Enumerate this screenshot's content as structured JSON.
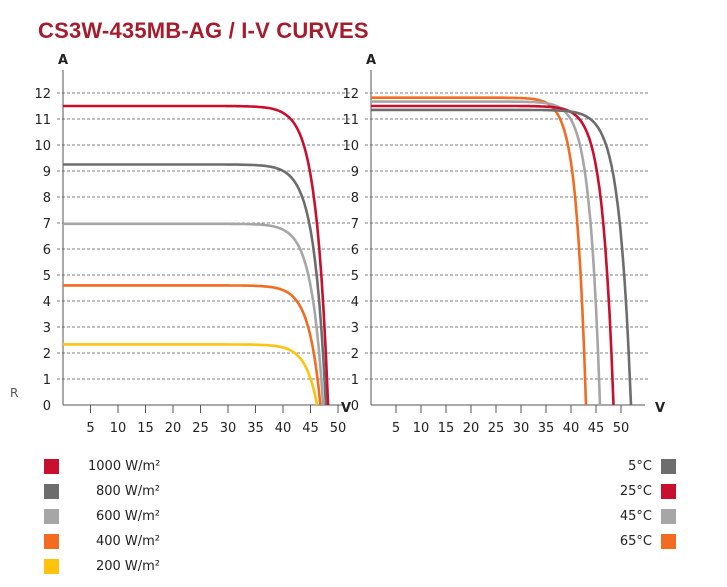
{
  "title": "CS3W-435MB-AG / I-V CURVES",
  "stray_label": "R",
  "chart_data": [
    {
      "type": "line",
      "title": "I-V curves vs irradiance",
      "xlabel": "V",
      "ylabel": "A",
      "xlim": [
        0,
        50
      ],
      "ylim": [
        0,
        12
      ],
      "x_ticks": [
        5,
        10,
        15,
        20,
        25,
        30,
        35,
        40,
        45,
        50
      ],
      "y_ticks": [
        0,
        1,
        2,
        3,
        4,
        5,
        6,
        7,
        8,
        9,
        10,
        11,
        12
      ],
      "grid": "horizontal dashed",
      "legend_position": "bottom-left",
      "series": [
        {
          "name": "1000 W/m²",
          "color": "#c8102e",
          "isc": 11.5,
          "voc": 48.2,
          "knee_v": 38,
          "knee_i": 11.2
        },
        {
          "name": "800 W/m²",
          "color": "#6d6d6d",
          "isc": 9.25,
          "voc": 47.8,
          "knee_v": 38,
          "knee_i": 9.0
        },
        {
          "name": "600 W/m²",
          "color": "#a6a6a6",
          "isc": 6.97,
          "voc": 47.3,
          "knee_v": 37.5,
          "knee_i": 6.75
        },
        {
          "name": "400 W/m²",
          "color": "#f26b21",
          "isc": 4.6,
          "voc": 46.8,
          "knee_v": 37,
          "knee_i": 4.45
        },
        {
          "name": "200 W/m²",
          "color": "#ffc20e",
          "isc": 2.33,
          "voc": 46.2,
          "knee_v": 36,
          "knee_i": 2.25
        }
      ]
    },
    {
      "type": "line",
      "title": "I-V curves vs cell temperature",
      "xlabel": "V",
      "ylabel": "A",
      "xlim": [
        0,
        50
      ],
      "ylim": [
        0,
        12
      ],
      "x_ticks": [
        5,
        10,
        15,
        20,
        25,
        30,
        35,
        40,
        45,
        50
      ],
      "y_ticks": [
        0,
        1,
        2,
        3,
        4,
        5,
        6,
        7,
        8,
        9,
        10,
        11,
        12
      ],
      "grid": "horizontal dashed",
      "legend_position": "bottom-right",
      "series": [
        {
          "name": "5°C",
          "color": "#6d6d6d",
          "isc": 11.35,
          "voc": 52.0,
          "knee_v": 41,
          "knee_i": 11.0
        },
        {
          "name": "25°C",
          "color": "#c8102e",
          "isc": 11.5,
          "voc": 48.5,
          "knee_v": 38,
          "knee_i": 11.1
        },
        {
          "name": "45°C",
          "color": "#a6a6a6",
          "isc": 11.67,
          "voc": 45.8,
          "knee_v": 35,
          "knee_i": 11.2
        },
        {
          "name": "65°C",
          "color": "#f26b21",
          "isc": 11.82,
          "voc": 43.0,
          "knee_v": 33,
          "knee_i": 11.3
        }
      ]
    }
  ],
  "legend_left": [
    {
      "label": "1000 W/m²",
      "color": "#c8102e"
    },
    {
      "label": "800 W/m²",
      "color": "#6d6d6d"
    },
    {
      "label": "600 W/m²",
      "color": "#a6a6a6"
    },
    {
      "label": "400 W/m²",
      "color": "#f26b21"
    },
    {
      "label": "200 W/m²",
      "color": "#ffc20e"
    }
  ],
  "legend_right": [
    {
      "label": "5°C",
      "color": "#6d6d6d"
    },
    {
      "label": "25°C",
      "color": "#c8102e"
    },
    {
      "label": "45°C",
      "color": "#a6a6a6"
    },
    {
      "label": "65°C",
      "color": "#f26b21"
    }
  ]
}
